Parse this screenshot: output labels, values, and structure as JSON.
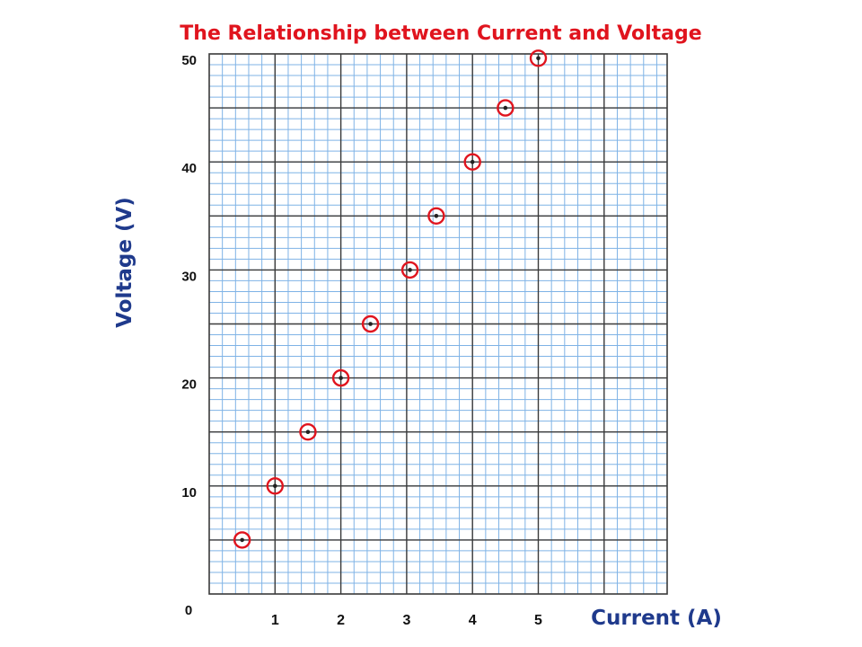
{
  "chart_data": {
    "type": "scatter",
    "title": "The Relationship between Current and Voltage",
    "xlabel": "Current  (A)",
    "ylabel": "Voltage  (V)",
    "xlim": [
      0,
      7
    ],
    "ylim": [
      0,
      50
    ],
    "x_ticks": [
      "1",
      "2",
      "3",
      "4",
      "5"
    ],
    "x_tick_values": [
      1,
      2,
      3,
      4,
      5
    ],
    "y_ticks": [
      "10",
      "20",
      "30",
      "40",
      "50"
    ],
    "y_tick_values": [
      10,
      20,
      30,
      40,
      50
    ],
    "origin_label": "0",
    "grid": true,
    "x": [
      0.5,
      1.0,
      1.5,
      2.0,
      2.45,
      3.05,
      3.45,
      4.0,
      4.5,
      5.0
    ],
    "y": [
      5,
      10,
      15,
      20,
      25,
      30,
      35,
      40,
      45,
      49.6
    ],
    "colors": {
      "title": "#e0141e",
      "marker": "#e0141e",
      "axis_label": "#1f3a8c",
      "tick": "#111111",
      "grid_major": "#3a3a3a",
      "grid_minor": "#7fb3e6"
    }
  }
}
